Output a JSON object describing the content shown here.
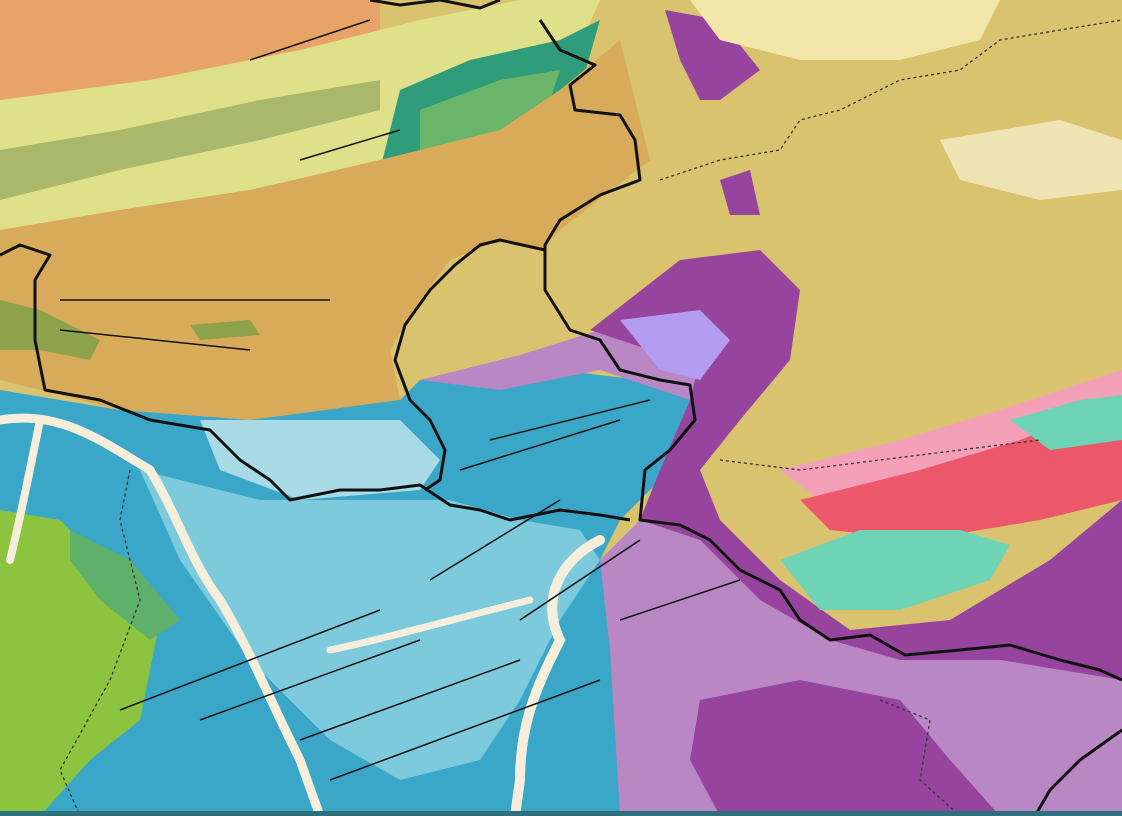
{
  "map": {
    "palette": {
      "orange_sediments": "#e8a468",
      "yellow_green": "#dfe08a",
      "tan": "#d8ab5a",
      "khaki": "#d9c36f",
      "olive_green": "#8da24a",
      "teal_green": "#2f9c7a",
      "blue": "#3aa7c9",
      "light_blue": "#7ccadb",
      "pale_blue": "#a8dbe6",
      "cream_river": "#f5eedb",
      "purple": "#97449f",
      "light_purple": "#b987c3",
      "lavender": "#b49cf0",
      "bright_green": "#8cc43f",
      "pink": "#f3a0b8",
      "red": "#ec5869",
      "aquamarine": "#6fd4b6",
      "border": "#111111"
    }
  }
}
